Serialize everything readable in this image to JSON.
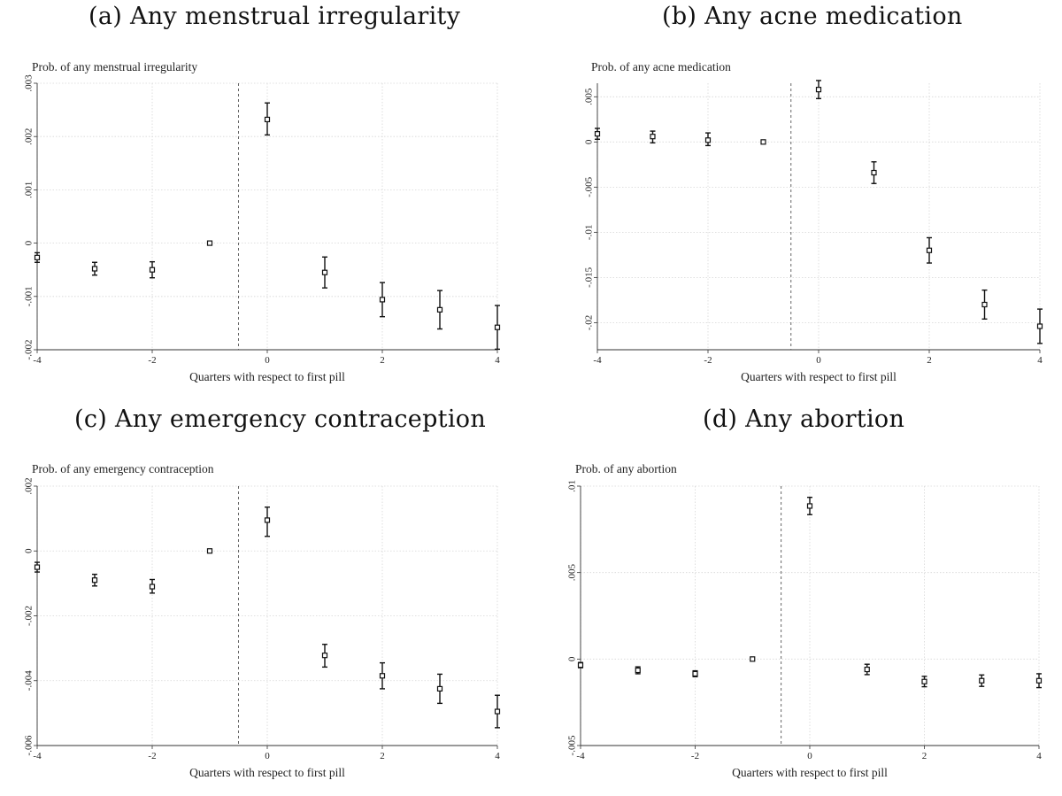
{
  "chart_data": [
    {
      "type": "scatter",
      "panel_label": "(a) Any menstrual irregularity",
      "ylabel": "Prob. of any menstrual irregularity",
      "xlabel": "Quarters with respect to first pill",
      "xlim": [
        -4,
        4
      ],
      "ylim": [
        -0.002,
        0.003
      ],
      "x_ticks": [
        -4,
        -2,
        0,
        2,
        4
      ],
      "x_tick_labels": [
        "-4",
        "-2",
        "0",
        "2",
        "4"
      ],
      "y_ticks": [
        -0.002,
        -0.001,
        0,
        0.001,
        0.002,
        0.003
      ],
      "y_tick_labels": [
        "-.002",
        "-.001",
        "0",
        ".001",
        ".002",
        ".003"
      ],
      "grid": true,
      "reference_line_x": -0.5,
      "points": [
        {
          "x": -4,
          "y": -0.00027,
          "lo": -0.00036,
          "hi": -0.00018
        },
        {
          "x": -3,
          "y": -0.00048,
          "lo": -0.0006,
          "hi": -0.00036
        },
        {
          "x": -2,
          "y": -0.0005,
          "lo": -0.00065,
          "hi": -0.00035
        },
        {
          "x": -1,
          "y": 0.0,
          "lo": 0.0,
          "hi": 0.0
        },
        {
          "x": 0,
          "y": 0.00232,
          "lo": 0.00203,
          "hi": 0.00263
        },
        {
          "x": 1,
          "y": -0.00055,
          "lo": -0.00084,
          "hi": -0.00026
        },
        {
          "x": 2,
          "y": -0.00106,
          "lo": -0.00138,
          "hi": -0.00074
        },
        {
          "x": 3,
          "y": -0.00125,
          "lo": -0.00161,
          "hi": -0.00089
        },
        {
          "x": 4,
          "y": -0.00158,
          "lo": -0.00199,
          "hi": -0.00117
        }
      ]
    },
    {
      "type": "scatter",
      "panel_label": "(b) Any acne medication",
      "ylabel": "Prob. of any acne medication",
      "xlabel": "Quarters with respect to first pill",
      "xlim": [
        -4,
        4
      ],
      "ylim": [
        -0.023,
        0.0065
      ],
      "x_ticks": [
        -4,
        -2,
        0,
        2,
        4
      ],
      "x_tick_labels": [
        "-4",
        "-2",
        "0",
        "2",
        "4"
      ],
      "y_ticks": [
        -0.02,
        -0.015,
        -0.01,
        -0.005,
        0,
        0.005
      ],
      "y_tick_labels": [
        "-.02",
        "-.015",
        "-.01",
        "-.005",
        "0",
        ".005"
      ],
      "grid": true,
      "reference_line_x": -0.5,
      "points": [
        {
          "x": -4,
          "y": 0.0009,
          "lo": 0.0003,
          "hi": 0.0015
        },
        {
          "x": -3,
          "y": 0.0006,
          "lo": -0.0001,
          "hi": 0.0012
        },
        {
          "x": -2,
          "y": 0.0002,
          "lo": -0.0004,
          "hi": 0.001
        },
        {
          "x": -1,
          "y": 0.0,
          "lo": 0.0,
          "hi": 0.0
        },
        {
          "x": 0,
          "y": 0.0058,
          "lo": 0.0048,
          "hi": 0.0068
        },
        {
          "x": 1,
          "y": -0.0034,
          "lo": -0.0046,
          "hi": -0.0022
        },
        {
          "x": 2,
          "y": -0.012,
          "lo": -0.0134,
          "hi": -0.0106
        },
        {
          "x": 3,
          "y": -0.018,
          "lo": -0.0196,
          "hi": -0.0164
        },
        {
          "x": 4,
          "y": -0.0204,
          "lo": -0.0223,
          "hi": -0.0185
        }
      ]
    },
    {
      "type": "scatter",
      "panel_label": "(c) Any emergency contraception",
      "ylabel": "Prob. of any emergency contraception",
      "xlabel": "Quarters with respect to first pill",
      "xlim": [
        -4,
        4
      ],
      "ylim": [
        -0.006,
        0.002
      ],
      "x_ticks": [
        -4,
        -2,
        0,
        2,
        4
      ],
      "x_tick_labels": [
        "-4",
        "-2",
        "0",
        "2",
        "4"
      ],
      "y_ticks": [
        -0.006,
        -0.004,
        -0.002,
        0,
        0.002
      ],
      "y_tick_labels": [
        "-.006",
        "-.004",
        "-.002",
        "0",
        ".002"
      ],
      "grid": true,
      "reference_line_x": -0.5,
      "points": [
        {
          "x": -4,
          "y": -0.0005,
          "lo": -0.00065,
          "hi": -0.00035
        },
        {
          "x": -3,
          "y": -0.0009,
          "lo": -0.00108,
          "hi": -0.00072
        },
        {
          "x": -2,
          "y": -0.0011,
          "lo": -0.0013,
          "hi": -0.00088
        },
        {
          "x": -1,
          "y": 0.0,
          "lo": 0.0,
          "hi": 0.0
        },
        {
          "x": 0,
          "y": 0.00095,
          "lo": 0.00045,
          "hi": 0.00135
        },
        {
          "x": 1,
          "y": -0.00322,
          "lo": -0.00358,
          "hi": -0.00288
        },
        {
          "x": 2,
          "y": -0.00385,
          "lo": -0.00425,
          "hi": -0.00345
        },
        {
          "x": 3,
          "y": -0.00425,
          "lo": -0.0047,
          "hi": -0.0038
        },
        {
          "x": 4,
          "y": -0.00495,
          "lo": -0.00545,
          "hi": -0.00445
        }
      ]
    },
    {
      "type": "scatter",
      "panel_label": "(d) Any abortion",
      "ylabel": "Prob. of any abortion",
      "xlabel": "Quarters with respect to first pill",
      "xlim": [
        -4,
        4
      ],
      "ylim": [
        -0.005,
        0.01
      ],
      "x_ticks": [
        -4,
        -2,
        0,
        2,
        4
      ],
      "x_tick_labels": [
        "-4",
        "-2",
        "0",
        "2",
        "4"
      ],
      "y_ticks": [
        -0.005,
        0,
        0.005,
        0.01
      ],
      "y_tick_labels": [
        "-.005",
        "0",
        ".005",
        ".01"
      ],
      "grid": true,
      "reference_line_x": -0.5,
      "points": [
        {
          "x": -4,
          "y": -0.00035,
          "lo": -0.0005,
          "hi": -0.0002
        },
        {
          "x": -3,
          "y": -0.00065,
          "lo": -0.00085,
          "hi": -0.00045
        },
        {
          "x": -2,
          "y": -0.00085,
          "lo": -0.00102,
          "hi": -0.00068
        },
        {
          "x": -1,
          "y": 0.0,
          "lo": 0.0,
          "hi": 0.0
        },
        {
          "x": 0,
          "y": 0.00885,
          "lo": 0.00835,
          "hi": 0.00935
        },
        {
          "x": 1,
          "y": -0.0006,
          "lo": -0.0009,
          "hi": -0.0003
        },
        {
          "x": 2,
          "y": -0.0013,
          "lo": -0.0016,
          "hi": -0.001
        },
        {
          "x": 3,
          "y": -0.00125,
          "lo": -0.00158,
          "hi": -0.00092
        },
        {
          "x": 4,
          "y": -0.00125,
          "lo": -0.00165,
          "hi": -0.00085
        }
      ]
    }
  ]
}
